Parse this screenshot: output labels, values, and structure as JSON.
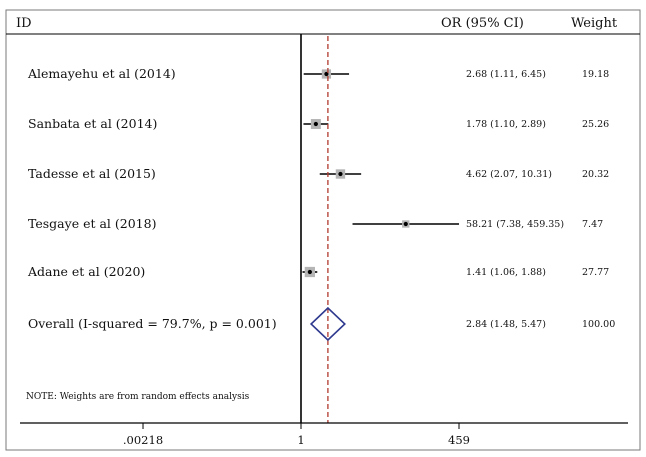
{
  "chart_data": {
    "type": "forest",
    "headers": {
      "id": "ID",
      "or": "OR (95% CI)",
      "weight": "Weight"
    },
    "x_scale": "log",
    "x_ticks": [
      {
        "value": 0.00218,
        "label": ".00218"
      },
      {
        "value": 1,
        "label": "1"
      },
      {
        "value": 459,
        "label": "459"
      }
    ],
    "null_line": 1,
    "overall_line": 2.84,
    "studies": [
      {
        "id": "Alemayehu et al (2014)",
        "or": 2.68,
        "lo": 1.11,
        "hi": 6.45,
        "ci_text": "2.68 (1.11, 6.45)",
        "weight": "19.18",
        "w": 19.18
      },
      {
        "id": "Sanbata et al (2014)",
        "or": 1.78,
        "lo": 1.1,
        "hi": 2.89,
        "ci_text": "1.78 (1.10, 2.89)",
        "weight": "25.26",
        "w": 25.26
      },
      {
        "id": "Tadesse et al (2015)",
        "or": 4.62,
        "lo": 2.07,
        "hi": 10.31,
        "ci_text": "4.62 (2.07, 10.31)",
        "weight": "20.32",
        "w": 20.32
      },
      {
        "id": "Tesgaye et al (2018)",
        "or": 58.21,
        "lo": 7.38,
        "hi": 459.35,
        "ci_text": "58.21 (7.38, 459.35)",
        "weight": "7.47",
        "w": 7.47
      },
      {
        "id": "Adane et al (2020)",
        "or": 1.41,
        "lo": 1.06,
        "hi": 1.88,
        "ci_text": "1.41 (1.06, 1.88)",
        "weight": "27.77",
        "w": 27.77
      }
    ],
    "overall": {
      "id": "Overall  (I-squared = 79.7%, p = 0.001)",
      "or": 2.84,
      "lo": 1.48,
      "hi": 5.47,
      "ci_text": "2.84 (1.48, 5.47)",
      "weight": "100.00"
    },
    "note": "NOTE: Weights are from random effects analysis",
    "colors": {
      "reference_line": "#b03a2e",
      "box": "#b5b5b5",
      "diamond": "#2f3a8f",
      "line": "#000000"
    }
  }
}
